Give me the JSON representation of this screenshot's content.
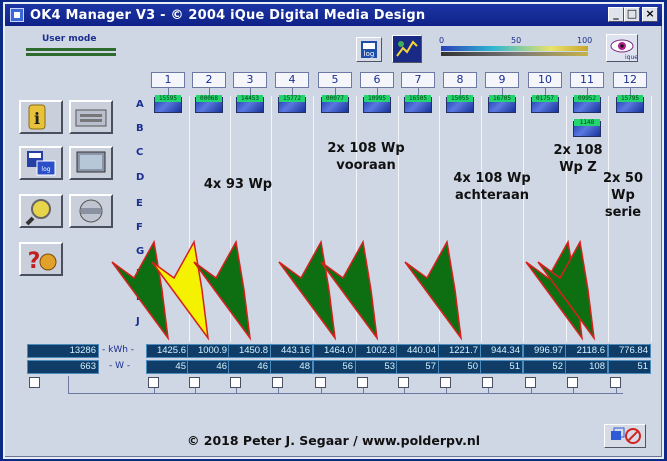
{
  "window": {
    "title": "OK4 Manager V3 - © 2004 iQue Digital Media Design"
  },
  "toolbar": {
    "user_mode": "User mode",
    "log_label": "log",
    "scale_ticks": [
      "0",
      "50",
      "100"
    ],
    "logo_label": "ique"
  },
  "columns": [
    "1",
    "2",
    "3",
    "4",
    "5",
    "6",
    "7",
    "8",
    "9",
    "10",
    "11",
    "12"
  ],
  "rows": [
    "A",
    "B",
    "C",
    "D",
    "E",
    "F",
    "G",
    "H",
    "I",
    "J"
  ],
  "panels": [
    {
      "col": 1,
      "row": "A",
      "value": "15595"
    },
    {
      "col": 2,
      "row": "A",
      "value": "00068"
    },
    {
      "col": 3,
      "row": "A",
      "value": "14453"
    },
    {
      "col": 4,
      "row": "A",
      "value": "15772"
    },
    {
      "col": 5,
      "row": "A",
      "value": "00077"
    },
    {
      "col": 6,
      "row": "A",
      "value": "10995"
    },
    {
      "col": 7,
      "row": "A",
      "value": "16505"
    },
    {
      "col": 8,
      "row": "A",
      "value": "15055"
    },
    {
      "col": 9,
      "row": "A",
      "value": "16705"
    },
    {
      "col": 10,
      "row": "A",
      "value": "01757"
    },
    {
      "col": 11,
      "row": "A",
      "value": "09952"
    },
    {
      "col": 12,
      "row": "A",
      "value": "15795"
    },
    {
      "col": 11,
      "row": "B",
      "value": "1148"
    }
  ],
  "annotations": [
    {
      "text": "4x 93 Wp"
    },
    {
      "text": "2x 108 Wp vooraan"
    },
    {
      "text": "4x 108 Wp achteraan"
    },
    {
      "text": "2x 108 Wp Z"
    },
    {
      "text": "2x 50 Wp serie"
    }
  ],
  "totals": {
    "kwh": "13286",
    "w": "663",
    "kwh_label": "- kWh -",
    "w_label": "- W -"
  },
  "kwh": [
    "1425.6",
    "1000.9",
    "1450.8",
    "443.16",
    "1464.0",
    "1002.8",
    "440.04",
    "1221.7",
    "944.34",
    "996.97",
    "2118.6",
    "776.84"
  ],
  "watts": [
    "45",
    "46",
    "46",
    "48",
    "56",
    "53",
    "57",
    "50",
    "51",
    "52",
    "108",
    "51"
  ],
  "colors": {
    "arrow_ok": "#0e6e12",
    "arrow_warn": "#f4f200",
    "arrow_edge": "#d6211b"
  },
  "copyright": "© 2018 Peter J. Segaar / www.polderpv.nl"
}
